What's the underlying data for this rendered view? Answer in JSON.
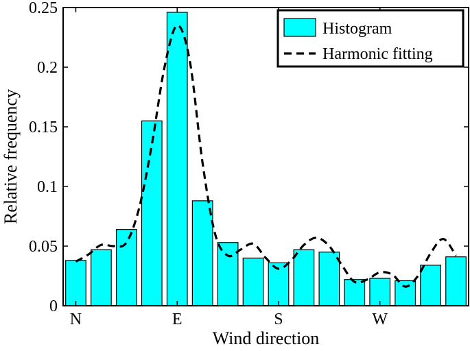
{
  "chart_data": {
    "type": "bar",
    "title": "",
    "xlabel": "Wind direction",
    "ylabel": "Relative frequency",
    "ylim": [
      0,
      0.25
    ],
    "yticks": [
      0,
      0.05,
      0.1,
      0.15,
      0.2,
      0.25
    ],
    "ytick_labels": [
      "0",
      "0.05",
      "0.1",
      "0.15",
      "0.2",
      "0.25"
    ],
    "xtick_labels": [
      {
        "label": "N",
        "bin": 1
      },
      {
        "label": "E",
        "bin": 5
      },
      {
        "label": "S",
        "bin": 9
      },
      {
        "label": "W",
        "bin": 13
      }
    ],
    "bins": [
      1,
      2,
      3,
      4,
      5,
      6,
      7,
      8,
      9,
      10,
      11,
      12,
      13,
      14,
      15,
      16
    ],
    "legend": {
      "position": "top-right"
    },
    "series": [
      {
        "name": "Histogram",
        "kind": "bar",
        "color": "#00FFFF",
        "values": [
          0.038,
          0.047,
          0.064,
          0.155,
          0.246,
          0.088,
          0.053,
          0.04,
          0.036,
          0.047,
          0.045,
          0.022,
          0.023,
          0.021,
          0.034,
          0.041
        ]
      },
      {
        "name": "Harmonic fitting",
        "kind": "line",
        "style": "dashed",
        "color": "#000000",
        "x": [
          1.0,
          1.5,
          2.0,
          2.5,
          3.0,
          3.5,
          4.0,
          4.5,
          5.0,
          5.5,
          6.0,
          6.5,
          7.0,
          7.5,
          8.0,
          8.5,
          9.0,
          9.5,
          10.0,
          10.5,
          11.0,
          11.5,
          12.0,
          12.5,
          13.0,
          13.5,
          14.0,
          14.5,
          15.0,
          15.5,
          16.0
        ],
        "y": [
          0.037,
          0.043,
          0.051,
          0.05,
          0.053,
          0.082,
          0.135,
          0.2,
          0.235,
          0.205,
          0.12,
          0.06,
          0.042,
          0.047,
          0.052,
          0.04,
          0.031,
          0.038,
          0.051,
          0.057,
          0.05,
          0.034,
          0.02,
          0.022,
          0.028,
          0.026,
          0.016,
          0.025,
          0.044,
          0.056,
          0.042
        ]
      }
    ]
  }
}
